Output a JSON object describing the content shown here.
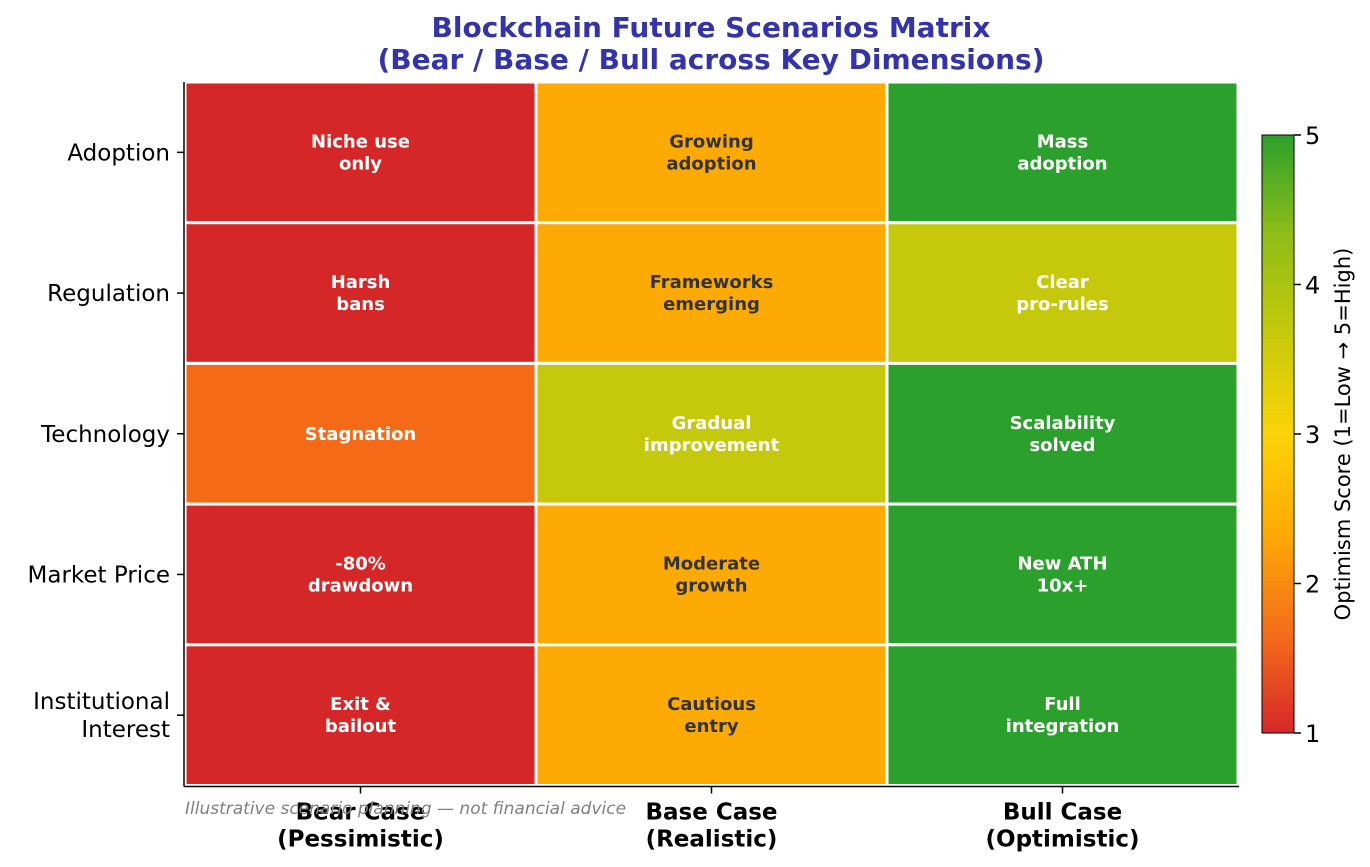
{
  "chart_data": {
    "type": "heatmap",
    "title": "Blockchain Future Scenarios Matrix",
    "subtitle": "(Bear / Base / Bull across Key Dimensions)",
    "title_color": "#3333aa",
    "rows": [
      [
        "Adoption"
      ],
      [
        "Regulation"
      ],
      [
        "Technology"
      ],
      [
        "Market Price"
      ],
      [
        "Institutional",
        "Interest"
      ]
    ],
    "columns": [
      [
        "Bear Case",
        "(Pessimistic)"
      ],
      [
        "Base Case",
        "(Realistic)"
      ],
      [
        "Bull Case",
        "(Optimistic)"
      ]
    ],
    "values": [
      [
        1,
        3,
        5
      ],
      [
        1,
        3,
        4
      ],
      [
        2,
        4,
        5
      ],
      [
        1,
        3,
        5
      ],
      [
        1,
        3,
        5
      ]
    ],
    "cell_labels": [
      [
        [
          "Niche use",
          "only"
        ],
        [
          "Growing",
          "adoption"
        ],
        [
          "Mass",
          "adoption"
        ]
      ],
      [
        [
          "Harsh",
          "bans"
        ],
        [
          "Frameworks",
          "emerging"
        ],
        [
          "Clear",
          "pro-rules"
        ]
      ],
      [
        [
          "Stagnation"
        ],
        [
          "Gradual",
          "improvement"
        ],
        [
          "Scalability",
          "solved"
        ]
      ],
      [
        [
          "-80%",
          "drawdown"
        ],
        [
          "Moderate",
          "growth"
        ],
        [
          "New ATH",
          "10x+"
        ]
      ],
      [
        [
          "Exit &",
          "bailout"
        ],
        [
          "Cautious",
          "entry"
        ],
        [
          "Full",
          "integration"
        ]
      ]
    ],
    "colorscale": {
      "min": 1,
      "max": 5,
      "colors": [
        "#d62728",
        "#f46d1a",
        "#fdaa05",
        "#fbd308",
        "#c6c90b",
        "#8fbd18",
        "#2ca02c"
      ],
      "ticks": [
        1,
        2,
        3,
        4,
        5
      ],
      "label": "Optimism Score (1=Low → 5=High)"
    },
    "score_colors": {
      "1": "#d62728",
      "2": "#f46a16",
      "3": "#fdaa05",
      "4": "#c6c90b",
      "5": "#2ca02c"
    },
    "dark_text_color": "#333333",
    "light_text_color": "#ffffff",
    "footnote": "Illustrative scenario planning — not financial advice"
  }
}
